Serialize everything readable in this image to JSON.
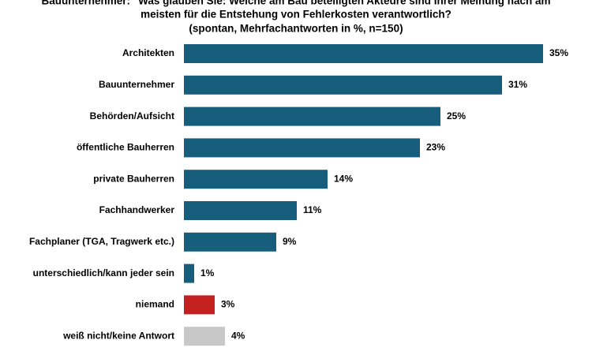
{
  "chart_data": {
    "type": "bar",
    "orientation": "horizontal",
    "title": [
      "Bauunternehmer: \"Was glauben Sie: Welche am Bau beteiligten Akteure sind Ihrer Meinung nach am",
      "meisten für die Entstehung von Fehlerkosten verantwortlich?",
      "(spontan, Mehrfachantworten in %, n=150)"
    ],
    "categories": [
      "Architekten",
      "Bauunternehmer",
      "Behörden/Aufsicht",
      "öffentliche Bauherren",
      "private Bauherren",
      "Fachhandwerker",
      "Fachplaner (TGA, Tragwerk etc.)",
      "unterschiedlich/kann jeder sein",
      "niemand",
      "weiß nicht/keine Antwort"
    ],
    "values": [
      35,
      31,
      25,
      23,
      14,
      11,
      9,
      1,
      3,
      4
    ],
    "value_labels": [
      "35%",
      "31%",
      "25%",
      "23%",
      "14%",
      "11%",
      "9%",
      "1%",
      "3%",
      "4%"
    ],
    "colors": [
      "#175e7c",
      "#175e7c",
      "#175e7c",
      "#175e7c",
      "#175e7c",
      "#175e7c",
      "#175e7c",
      "#175e7c",
      "#c4201f",
      "#c8c8c8"
    ]
  }
}
